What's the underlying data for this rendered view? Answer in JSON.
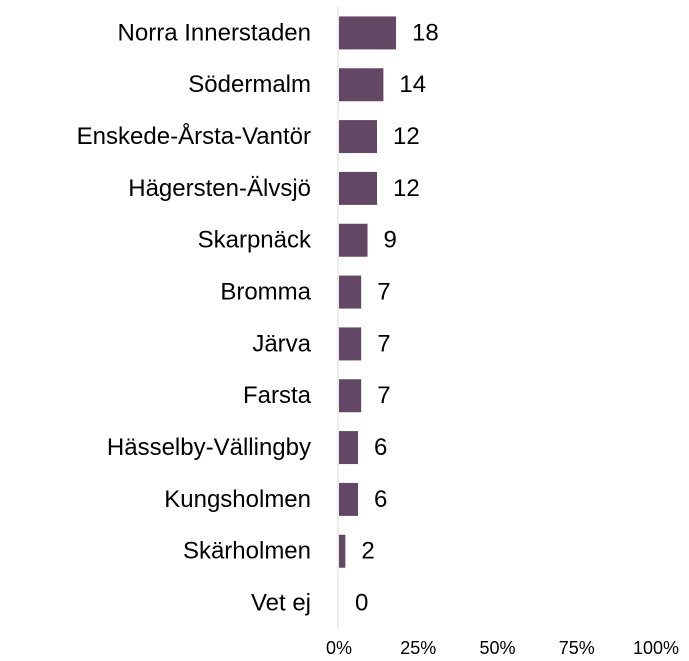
{
  "chart_data": {
    "type": "barh",
    "categories": [
      "Norra Innerstaden",
      "Södermalm",
      "Enskede-Årsta-Vantör",
      "Hägersten-Älvsjö",
      "Skarpnäck",
      "Bromma",
      "Järva",
      "Farsta",
      "Hässelby-Vällingby",
      "Kungsholmen",
      "Skärholmen",
      "Vet ej"
    ],
    "values": [
      18,
      14,
      12,
      12,
      9,
      7,
      7,
      7,
      6,
      6,
      2,
      0
    ],
    "color": "#634866",
    "xlim": [
      0,
      100
    ],
    "xticks": [
      {
        "value": 0,
        "label": "0%"
      },
      {
        "value": 25,
        "label": "25%"
      },
      {
        "value": 50,
        "label": "50%"
      },
      {
        "value": 75,
        "label": "75%"
      },
      {
        "value": 100,
        "label": "100%"
      }
    ],
    "grid": false
  }
}
